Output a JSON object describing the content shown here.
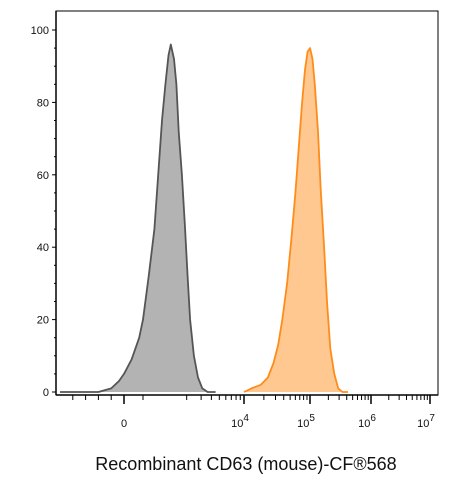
{
  "chart_data": {
    "type": "area",
    "title": "",
    "xlabel": "Recombinant CD63 (mouse)-CF®568",
    "ylabel": "",
    "x_scale": "biexponential",
    "ylim": [
      0,
      100
    ],
    "y_ticks": [
      {
        "value": 0,
        "label": "0"
      },
      {
        "value": 20,
        "label": "20"
      },
      {
        "value": 40,
        "label": "40"
      },
      {
        "value": 60,
        "label": "60"
      },
      {
        "value": 80,
        "label": "80"
      },
      {
        "value": 100,
        "label": "100"
      }
    ],
    "x_ticks": [
      {
        "value": 0,
        "base": "0",
        "exp": ""
      },
      {
        "value": 10000,
        "base": "10",
        "exp": "4"
      },
      {
        "value": 100000,
        "base": "10",
        "exp": "5"
      },
      {
        "value": 1000000,
        "base": "10",
        "exp": "6"
      },
      {
        "value": 10000000,
        "base": "10",
        "exp": "7"
      }
    ],
    "grid": false,
    "series": [
      {
        "color": "#555555",
        "fill": "#b3b3b3",
        "points": [
          [
            -2500,
            0
          ],
          [
            -1000,
            0
          ],
          [
            -500,
            1
          ],
          [
            -200,
            3
          ],
          [
            0,
            5
          ],
          [
            200,
            9
          ],
          [
            400,
            15
          ],
          [
            500,
            20
          ],
          [
            650,
            32
          ],
          [
            800,
            45
          ],
          [
            900,
            60
          ],
          [
            1000,
            75
          ],
          [
            1100,
            85
          ],
          [
            1200,
            93
          ],
          [
            1280,
            96
          ],
          [
            1400,
            92
          ],
          [
            1500,
            85
          ],
          [
            1600,
            72
          ],
          [
            1750,
            60
          ],
          [
            1900,
            46
          ],
          [
            2050,
            32
          ],
          [
            2200,
            20
          ],
          [
            2450,
            10
          ],
          [
            2750,
            4
          ],
          [
            3100,
            1
          ],
          [
            3600,
            0
          ],
          [
            4500,
            0
          ]
        ]
      },
      {
        "color": "#ff8c1a",
        "fill": "#ffc890",
        "points": [
          [
            10000,
            0
          ],
          [
            13000,
            1
          ],
          [
            18000,
            2
          ],
          [
            23000,
            4
          ],
          [
            28000,
            8
          ],
          [
            33000,
            13
          ],
          [
            38000,
            20
          ],
          [
            45000,
            30
          ],
          [
            52000,
            42
          ],
          [
            60000,
            55
          ],
          [
            68000,
            68
          ],
          [
            76000,
            80
          ],
          [
            84000,
            89
          ],
          [
            92000,
            94
          ],
          [
            100000,
            95
          ],
          [
            110000,
            92
          ],
          [
            120000,
            85
          ],
          [
            135000,
            72
          ],
          [
            150000,
            56
          ],
          [
            170000,
            40
          ],
          [
            190000,
            25
          ],
          [
            215000,
            12
          ],
          [
            250000,
            5
          ],
          [
            290000,
            1
          ],
          [
            340000,
            0
          ],
          [
            420000,
            0
          ]
        ]
      }
    ]
  }
}
